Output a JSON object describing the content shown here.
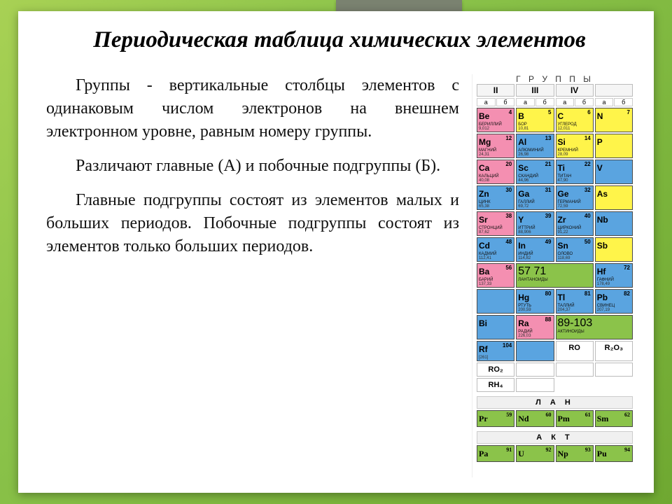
{
  "title": "Периодическая таблица химических элементов",
  "paragraphs": [
    "Группы - вертикальные столбцы элементов с одинаковым числом электронов на внешнем электронном уровне, равным номеру группы.",
    "Различают главные (А) и побочные подгруппы (Б).",
    "Главные подгруппы состоят из элементов малых и больших периодов. Побочные подгруппы состоят из элементов только больших периодов."
  ],
  "colors": {
    "blue": "#5aa4e0",
    "yellow": "#fff44a",
    "pink": "#f48fb1",
    "green": "#8bc34a",
    "white": "#ffffff",
    "gridBorder": "#4a4a4a"
  },
  "ptable": {
    "headerWord": "Г Р У П П Ы",
    "groupLabels": [
      "II",
      "III",
      "IV",
      ""
    ],
    "subLabels": [
      "а",
      "б"
    ],
    "rows": [
      [
        {
          "sym": "Be",
          "num": "4",
          "nm": "БЕРИЛЛИЙ",
          "mw": "9,012",
          "c": "pink"
        },
        {
          "sym": "B",
          "num": "5",
          "nm": "БОР",
          "mw": "10,81",
          "c": "yellow"
        },
        {
          "sym": "C",
          "num": "6",
          "nm": "УГЛЕРОД",
          "mw": "12,011",
          "c": "yellow"
        },
        {
          "sym": "N",
          "num": "7",
          "nm": "",
          "mw": "",
          "c": "yellow"
        }
      ],
      [
        {
          "sym": "Mg",
          "num": "12",
          "nm": "МАГНИЙ",
          "mw": "24,31",
          "c": "pink"
        },
        {
          "sym": "Al",
          "num": "13",
          "nm": "АЛЮМИНИЙ",
          "mw": "26,98",
          "c": "blue"
        },
        {
          "sym": "Si",
          "num": "14",
          "nm": "КРЕМНИЙ",
          "mw": "28,09",
          "c": "yellow"
        },
        {
          "sym": "P",
          "num": "",
          "nm": "",
          "mw": "",
          "c": "yellow"
        }
      ],
      [
        {
          "sym": "Ca",
          "num": "20",
          "nm": "КАЛЬЦИЙ",
          "mw": "40,08",
          "c": "pink"
        },
        {
          "sym": "Sc",
          "num": "21",
          "nm": "СКАНДИЙ",
          "mw": "44,96",
          "c": "blue"
        },
        {
          "sym": "Ti",
          "num": "22",
          "nm": "ТИТАН",
          "mw": "47,90",
          "c": "blue"
        },
        {
          "sym": "V",
          "num": "",
          "nm": "",
          "mw": "",
          "c": "blue"
        }
      ],
      [
        {
          "sym": "Zn",
          "num": "30",
          "nm": "ЦИНК",
          "mw": "65,38",
          "c": "blue"
        },
        {
          "sym": "Ga",
          "num": "31",
          "nm": "ГАЛЛИЙ",
          "mw": "69,72",
          "c": "blue"
        },
        {
          "sym": "Ge",
          "num": "32",
          "nm": "ГЕРМАНИЙ",
          "mw": "72,59",
          "c": "blue"
        },
        {
          "sym": "As",
          "num": "",
          "nm": "",
          "mw": "",
          "c": "yellow"
        }
      ],
      [
        {
          "sym": "Sr",
          "num": "38",
          "nm": "СТРОНЦИЙ",
          "mw": "87,62",
          "c": "pink"
        },
        {
          "sym": "Y",
          "num": "39",
          "nm": "ИТТРИЙ",
          "mw": "88,906",
          "c": "blue"
        },
        {
          "sym": "Zr",
          "num": "40",
          "nm": "ЦИРКОНИЙ",
          "mw": "91,22",
          "c": "blue"
        },
        {
          "sym": "Nb",
          "num": "",
          "nm": "",
          "mw": "",
          "c": "blue"
        }
      ],
      [
        {
          "sym": "Cd",
          "num": "48",
          "nm": "КАДМИЙ",
          "mw": "112,41",
          "c": "blue"
        },
        {
          "sym": "In",
          "num": "49",
          "nm": "ИНДИЙ",
          "mw": "114,82",
          "c": "blue"
        },
        {
          "sym": "Sn",
          "num": "50",
          "nm": "ОЛОВО",
          "mw": "118,69",
          "c": "blue"
        },
        {
          "sym": "Sb",
          "num": "",
          "nm": "",
          "mw": "",
          "c": "yellow"
        }
      ],
      [
        {
          "sym": "Ba",
          "num": "56",
          "nm": "БАРИЙ",
          "mw": "137,33",
          "c": "pink"
        },
        {
          "wide": true,
          "n1": "57",
          "n2": "71",
          "nm": "ЛАНТАНОИДЫ",
          "c": "green"
        },
        {
          "sym": "Hf",
          "num": "72",
          "nm": "ГАФНИЙ",
          "mw": "178,49",
          "c": "blue"
        },
        {
          "sym": "",
          "num": "",
          "nm": "",
          "mw": "",
          "c": "blue"
        }
      ],
      [
        {
          "sym": "Hg",
          "num": "80",
          "nm": "РТУТЬ",
          "mw": "200,59",
          "c": "blue"
        },
        {
          "sym": "Tl",
          "num": "81",
          "nm": "ТАЛЛИЙ",
          "mw": "204,37",
          "c": "blue"
        },
        {
          "sym": "Pb",
          "num": "82",
          "nm": "СВИНЕЦ",
          "mw": "207,19",
          "c": "blue"
        },
        {
          "sym": "Bi",
          "num": "",
          "nm": "",
          "mw": "",
          "c": "blue"
        }
      ],
      [
        {
          "sym": "Ra",
          "num": "88",
          "nm": "РАДИЙ",
          "mw": "226,03",
          "c": "pink"
        },
        {
          "wide": true,
          "n1": "89-103",
          "n2": "",
          "nm": "АКТИНОИДЫ",
          "c": "green"
        },
        {
          "sym": "Rf",
          "num": "104",
          "nm": "",
          "mw": "[261]",
          "c": "blue"
        },
        {
          "sym": "",
          "num": "",
          "nm": "",
          "mw": "",
          "c": "blue"
        }
      ]
    ],
    "formulaRow1": [
      "RO",
      "R₂O₃",
      "RO₂",
      ""
    ],
    "formulaRow2": [
      "",
      "",
      "RH₄",
      ""
    ],
    "lanthHeader": "Л А Н",
    "lanth": [
      {
        "sym": "Pr",
        "num": "59",
        "nm": "",
        "c": "green"
      },
      {
        "sym": "Nd",
        "num": "60",
        "nm": "",
        "c": "green"
      },
      {
        "sym": "Pm",
        "num": "61",
        "nm": "",
        "c": "green"
      },
      {
        "sym": "Sm",
        "num": "62",
        "nm": "",
        "c": "green"
      }
    ],
    "actHeader": "А К Т",
    "act": [
      {
        "sym": "Pa",
        "num": "91",
        "nm": "",
        "c": "green"
      },
      {
        "sym": "U",
        "num": "92",
        "nm": "",
        "c": "green"
      },
      {
        "sym": "Np",
        "num": "93",
        "nm": "",
        "c": "green"
      },
      {
        "sym": "Pu",
        "num": "94",
        "nm": "",
        "c": "green"
      }
    ]
  },
  "fonts": {
    "title": 33,
    "body": 24,
    "cellSym": 12
  }
}
